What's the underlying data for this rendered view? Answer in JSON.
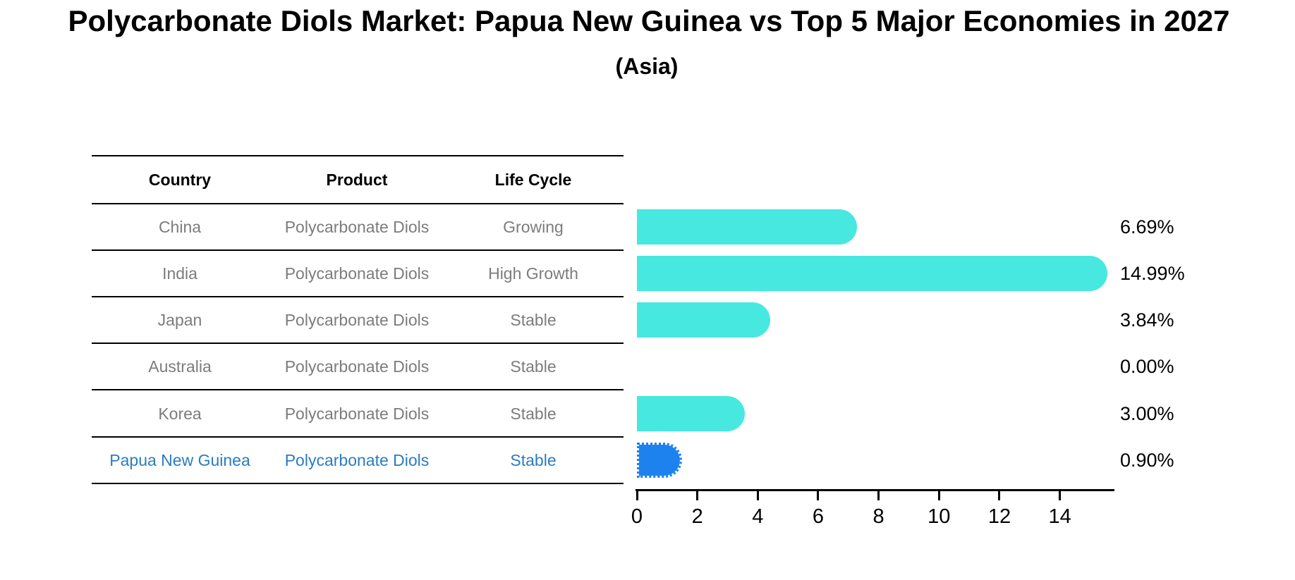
{
  "title": "Polycarbonate Diols Market: Papua New Guinea vs Top 5 Major Economies in 2027",
  "subtitle": "(Asia)",
  "table": {
    "headers": [
      "Country",
      "Product",
      "Life Cycle"
    ],
    "rows": [
      {
        "country": "China",
        "product": "Polycarbonate Diols",
        "life_cycle": "Growing",
        "highlight": false
      },
      {
        "country": "India",
        "product": "Polycarbonate Diols",
        "life_cycle": "High Growth",
        "highlight": false
      },
      {
        "country": "Japan",
        "product": "Polycarbonate Diols",
        "life_cycle": "Stable",
        "highlight": false
      },
      {
        "country": "Australia",
        "product": "Polycarbonate Diols",
        "life_cycle": "Stable",
        "highlight": false
      },
      {
        "country": "Korea",
        "product": "Polycarbonate Diols",
        "life_cycle": "Stable",
        "highlight": false
      },
      {
        "country": "Papua New Guinea",
        "product": "Polycarbonate Diols",
        "life_cycle": "Stable",
        "highlight": true
      }
    ]
  },
  "chart_data": {
    "type": "bar",
    "orientation": "horizontal",
    "categories": [
      "China",
      "India",
      "Japan",
      "Australia",
      "Korea",
      "Papua New Guinea"
    ],
    "values": [
      6.69,
      14.99,
      3.84,
      0.0,
      3.0,
      0.9
    ],
    "labels": [
      "6.69%",
      "14.99%",
      "3.84%",
      "0.00%",
      "3.00%",
      "0.90%"
    ],
    "x_ticks": [
      0,
      2,
      4,
      6,
      8,
      10,
      12,
      14
    ],
    "xlim": [
      0,
      15.8
    ],
    "grid": false,
    "legend": "none",
    "highlight_index": 5,
    "title": "Polycarbonate Diols Market: Papua New Guinea vs Top 5 Major Economies in 2027 (Asia)",
    "xlabel": "",
    "ylabel": ""
  },
  "colors": {
    "accent_bar": "#47E8E0",
    "highlight_bar": "#1E82EE",
    "highlight_text": "#2B7CC0",
    "table_text": "#7C7C7C",
    "heading_text": "#000000",
    "axis": "#000000",
    "background": "#FFFFFF"
  }
}
